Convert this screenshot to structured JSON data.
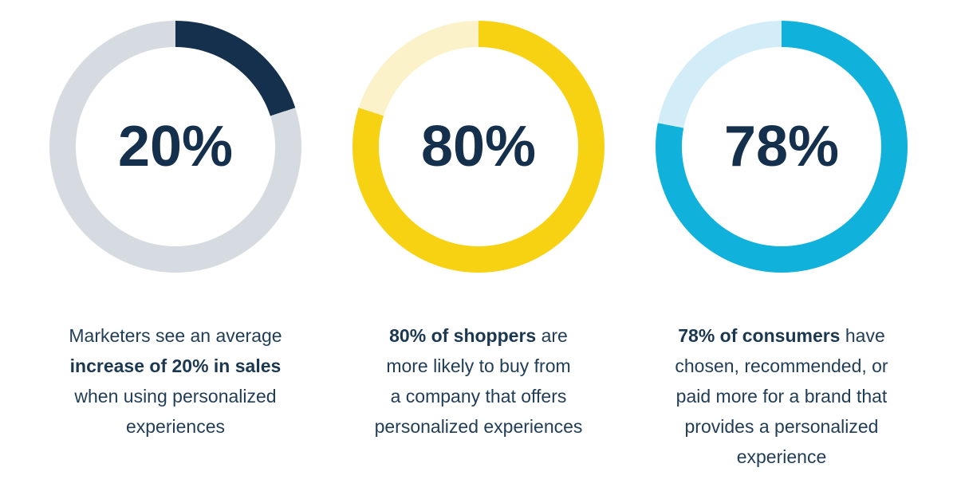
{
  "page": {
    "background_color": "#ffffff",
    "text_color": "#223e57",
    "accent_navy": "#14304c",
    "accent_yellow": "#f6d213",
    "accent_cyan": "#10b1da"
  },
  "chart_data": [
    {
      "type": "pie",
      "subtype": "donut",
      "center_label": "20%",
      "percent": 20,
      "values": [
        20,
        80
      ],
      "segment_labels": [
        "highlight",
        "track"
      ],
      "segment_colors": [
        "#14304c",
        "#d5dbe1"
      ],
      "start_angle_deg": 0,
      "direction": "clockwise",
      "caption_text": "Marketers see an average increase of 20% in sales when using personalized experiences",
      "caption_bold_text": "increase of 20% in sales",
      "caption_lines": [
        [
          {
            "text": "Marketers see an average",
            "bold": false
          }
        ],
        [
          {
            "text": "increase of 20% in sales",
            "bold": true
          }
        ],
        [
          {
            "text": "when using personalized",
            "bold": false
          }
        ],
        [
          {
            "text": "experiences",
            "bold": false
          }
        ]
      ]
    },
    {
      "type": "pie",
      "subtype": "donut",
      "center_label": "80%",
      "percent": 80,
      "values": [
        80,
        20
      ],
      "segment_labels": [
        "highlight",
        "track"
      ],
      "segment_colors": [
        "#f6d213",
        "#fbf2ca"
      ],
      "start_angle_deg": 0,
      "direction": "clockwise",
      "caption_text": "80% of shoppers are more likely to buy from a company that offers personalized experiences",
      "caption_bold_text": "80% of shoppers",
      "caption_lines": [
        [
          {
            "text": "80% of shoppers",
            "bold": true
          },
          {
            "text": " are",
            "bold": false
          }
        ],
        [
          {
            "text": "more likely to buy from",
            "bold": false
          }
        ],
        [
          {
            "text": "a company that offers",
            "bold": false
          }
        ],
        [
          {
            "text": "personalized experiences",
            "bold": false
          }
        ]
      ]
    },
    {
      "type": "pie",
      "subtype": "donut",
      "center_label": "78%",
      "percent": 78,
      "values": [
        78,
        22
      ],
      "segment_labels": [
        "highlight",
        "track"
      ],
      "segment_colors": [
        "#10b1da",
        "#d3edf8"
      ],
      "start_angle_deg": 0,
      "direction": "clockwise",
      "caption_text": "78% of consumers have chosen, recommended, or paid more for a brand that provides a personalized experience",
      "caption_bold_text": "78% of consumers",
      "caption_lines": [
        [
          {
            "text": "78% of consumers",
            "bold": true
          },
          {
            "text": " have",
            "bold": false
          }
        ],
        [
          {
            "text": "chosen, recommended, or",
            "bold": false
          }
        ],
        [
          {
            "text": "paid more for a brand that",
            "bold": false
          }
        ],
        [
          {
            "text": "provides a personalized",
            "bold": false
          }
        ],
        [
          {
            "text": "experience",
            "bold": false
          }
        ]
      ]
    }
  ]
}
